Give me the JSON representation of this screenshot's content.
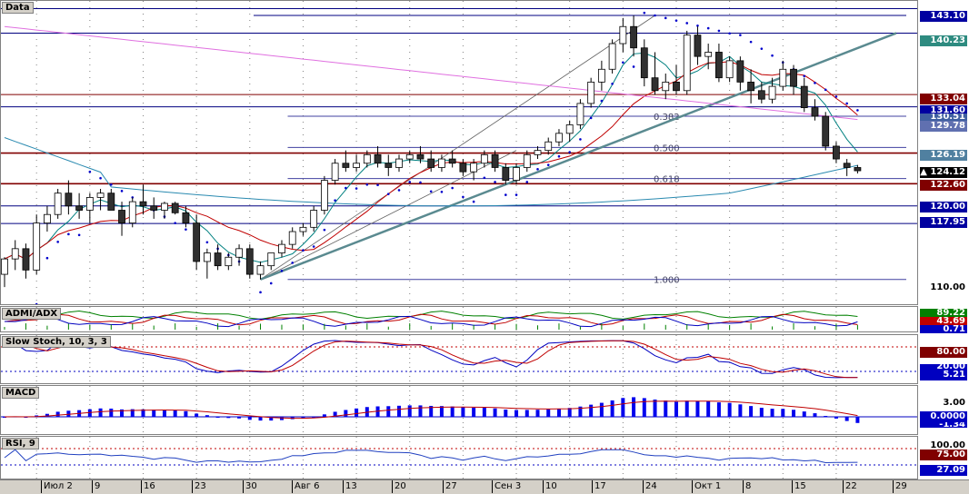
{
  "main_pane": {
    "title": "Data"
  },
  "admi_pane": {
    "title": "ADMI/ADX",
    "labels": [
      "89.22",
      "43.69",
      "0.71"
    ]
  },
  "stoch_pane": {
    "title": "Slow Stoch, 10, 3, 3",
    "labels": [
      "80.00",
      "20.00",
      "5.21"
    ]
  },
  "macd_pane": {
    "title": "MACD",
    "labels": [
      "3.00",
      "0.0000",
      "-1.34"
    ]
  },
  "rsi_pane": {
    "title": "RSI, 9",
    "labels": [
      "100.00",
      "75.00",
      "27.09"
    ]
  },
  "fib_labels": [
    "0.382",
    "0.500",
    "0.618",
    "1.000"
  ],
  "price_axis_labels": [
    "143.10",
    "140.23",
    "133.04",
    "131.60",
    "130.51",
    "129.78",
    "126.19",
    "124.12",
    "122.60",
    "120.00",
    "117.95",
    "110.00"
  ],
  "x_axis_labels": [
    "Июл 2",
    "9",
    "16",
    "23",
    "30",
    "Авг 6",
    "13",
    "20",
    "27",
    "Сен 3",
    "10",
    "17",
    "24",
    "Окт 1",
    "8",
    "15",
    "22",
    "29"
  ],
  "colors": {
    "up": "#ffffff",
    "down": "#303030",
    "ma_red": "#c00000",
    "ma_teal": "#008080",
    "ma_blue": "#2a8ab0",
    "ma_pink": "#e070e0",
    "sar": "#0000cc",
    "hline_blue": "#000080",
    "hline_red": "#800000"
  },
  "chart_data": [
    {
      "type": "candlestick",
      "title": "Data",
      "y_range": [
        108.5,
        144.0
      ],
      "horizontal_levels": [
        143.1,
        140.23,
        133.04,
        131.6,
        126.19,
        122.6,
        120.0,
        117.95
      ],
      "fibonacci": {
        "high": 142.3,
        "low": 111.4,
        "levels": [
          0.382,
          0.5,
          0.618,
          1.0
        ]
      },
      "last_price": 124.12,
      "candles": [
        [
          112.0,
          114.0,
          110.5,
          113.8
        ],
        [
          113.8,
          116.0,
          112.5,
          115.0
        ],
        [
          115.0,
          115.6,
          111.5,
          112.5
        ],
        [
          112.5,
          119.0,
          112.0,
          118.0
        ],
        [
          118.0,
          120.0,
          117.0,
          119.0
        ],
        [
          119.0,
          122.0,
          118.5,
          121.5
        ],
        [
          121.5,
          123.0,
          119.0,
          120.0
        ],
        [
          120.0,
          121.5,
          118.5,
          119.5
        ],
        [
          119.5,
          121.5,
          118.0,
          121.0
        ],
        [
          121.0,
          122.0,
          119.5,
          121.5
        ],
        [
          121.5,
          122.0,
          119.5,
          119.5
        ],
        [
          119.5,
          120.5,
          116.5,
          118.0
        ],
        [
          118.0,
          121.0,
          117.5,
          120.5
        ],
        [
          120.5,
          122.5,
          119.0,
          120.0
        ],
        [
          120.0,
          121.0,
          118.5,
          119.5
        ],
        [
          119.5,
          120.5,
          118.5,
          120.3
        ],
        [
          120.3,
          120.5,
          119.0,
          119.2
        ],
        [
          119.2,
          120.0,
          117.5,
          118.0
        ],
        [
          118.0,
          119.0,
          112.5,
          113.5
        ],
        [
          113.5,
          115.0,
          111.5,
          114.5
        ],
        [
          114.5,
          115.5,
          112.5,
          113.0
        ],
        [
          113.0,
          114.5,
          112.5,
          114.0
        ],
        [
          114.0,
          115.5,
          113.0,
          115.0
        ],
        [
          115.0,
          115.5,
          111.5,
          112.0
        ],
        [
          112.0,
          113.5,
          111.4,
          113.0
        ],
        [
          113.0,
          114.5,
          112.5,
          114.5
        ],
        [
          114.5,
          116.0,
          114.0,
          115.5
        ],
        [
          115.5,
          117.5,
          115.0,
          117.0
        ],
        [
          117.0,
          118.0,
          116.5,
          117.5
        ],
        [
          117.5,
          120.0,
          117.0,
          119.5
        ],
        [
          119.5,
          123.5,
          119.0,
          123.0
        ],
        [
          123.0,
          125.5,
          122.5,
          125.0
        ],
        [
          125.0,
          126.5,
          124.0,
          124.5
        ],
        [
          124.5,
          126.0,
          124.0,
          125.0
        ],
        [
          125.0,
          126.5,
          124.5,
          126.0
        ],
        [
          126.0,
          127.0,
          124.5,
          125.0
        ],
        [
          125.0,
          126.0,
          123.5,
          124.5
        ],
        [
          124.5,
          126.0,
          124.0,
          125.5
        ],
        [
          125.5,
          126.5,
          125.0,
          126.0
        ],
        [
          126.0,
          127.0,
          125.0,
          125.5
        ],
        [
          125.5,
          126.5,
          124.0,
          124.5
        ],
        [
          124.5,
          126.0,
          124.0,
          125.5
        ],
        [
          125.5,
          126.5,
          124.5,
          125.0
        ],
        [
          125.0,
          125.5,
          123.5,
          124.0
        ],
        [
          124.0,
          125.5,
          123.0,
          125.0
        ],
        [
          125.0,
          126.5,
          124.5,
          126.0
        ],
        [
          126.0,
          126.5,
          124.0,
          124.5
        ],
        [
          124.5,
          125.0,
          122.5,
          123.0
        ],
        [
          123.0,
          125.0,
          122.5,
          124.5
        ],
        [
          124.5,
          126.5,
          124.0,
          126.0
        ],
        [
          126.0,
          127.0,
          125.5,
          126.5
        ],
        [
          126.5,
          128.0,
          126.0,
          127.5
        ],
        [
          127.5,
          129.0,
          127.0,
          128.5
        ],
        [
          128.5,
          130.0,
          127.5,
          129.5
        ],
        [
          129.5,
          132.5,
          129.0,
          132.0
        ],
        [
          132.0,
          135.0,
          131.5,
          134.5
        ],
        [
          134.5,
          137.0,
          133.5,
          136.0
        ],
        [
          136.0,
          139.5,
          135.5,
          139.0
        ],
        [
          139.0,
          142.0,
          138.0,
          141.0
        ],
        [
          141.0,
          142.3,
          137.5,
          138.5
        ],
        [
          138.5,
          139.5,
          134.0,
          135.0
        ],
        [
          135.0,
          138.0,
          133.0,
          133.5
        ],
        [
          133.5,
          135.5,
          132.5,
          134.5
        ],
        [
          134.5,
          136.5,
          133.0,
          133.5
        ],
        [
          133.5,
          140.5,
          133.0,
          140.0
        ],
        [
          140.0,
          141.0,
          136.5,
          137.5
        ],
        [
          137.5,
          139.0,
          136.0,
          138.0
        ],
        [
          138.0,
          139.0,
          134.5,
          135.0
        ],
        [
          135.0,
          137.5,
          134.5,
          137.0
        ],
        [
          137.0,
          137.5,
          133.5,
          134.5
        ],
        [
          134.5,
          136.0,
          132.0,
          133.5
        ],
        [
          133.5,
          134.5,
          132.0,
          132.5
        ],
        [
          132.5,
          135.0,
          132.0,
          134.0
        ],
        [
          134.0,
          137.0,
          133.5,
          136.0
        ],
        [
          136.0,
          136.5,
          133.0,
          134.0
        ],
        [
          134.0,
          135.0,
          131.0,
          131.5
        ],
        [
          131.5,
          132.5,
          130.0,
          130.5
        ],
        [
          130.5,
          131.0,
          126.5,
          127.0
        ],
        [
          127.0,
          127.5,
          125.0,
          125.5
        ],
        [
          125.0,
          125.5,
          123.5,
          124.5
        ],
        [
          124.5,
          124.8,
          123.8,
          124.12
        ]
      ]
    },
    {
      "type": "line",
      "title": "ADMI/ADX",
      "series": [
        {
          "name": "ADX",
          "last": 89.22
        },
        {
          "name": "ADMI+",
          "last": 43.69
        },
        {
          "name": "ADMI-",
          "last": 0.71
        }
      ]
    },
    {
      "type": "line",
      "title": "Slow Stoch, 10, 3, 3",
      "levels": [
        80,
        20
      ],
      "last": 5.21
    },
    {
      "type": "bar",
      "title": "MACD",
      "zero": 0.0,
      "top": 3.0,
      "last": -1.34
    },
    {
      "type": "line",
      "title": "RSI, 9",
      "levels": [
        75,
        30
      ],
      "top": 100,
      "last": 27.09
    }
  ]
}
